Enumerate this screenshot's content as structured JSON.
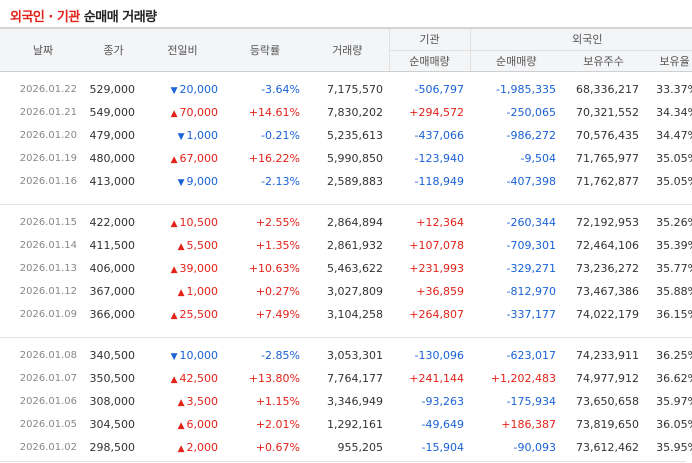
{
  "title": {
    "part1": "외국인",
    "sep": " · ",
    "part2": "기관",
    "part3": " 순매매 거래량"
  },
  "headers": {
    "date": "날짜",
    "close": "종가",
    "change": "전일비",
    "rate": "등락률",
    "volume": "거래량",
    "inst": "기관",
    "foreign": "외국인",
    "inst_net": "순매매량",
    "foreign_net": "순매매량",
    "holdings": "보유주수",
    "ratio": "보유율"
  },
  "colors": {
    "up": "#e2231a",
    "down": "#1a62d6"
  },
  "groups": [
    [
      {
        "date": "2026.01.22",
        "close": "529,000",
        "dir": "down",
        "change": "20,000",
        "rate": "-3.64%",
        "volume": "7,175,570",
        "inst": "-506,797",
        "foreign": "-1,985,335",
        "holdings": "68,336,217",
        "ratio": "33.37%"
      },
      {
        "date": "2026.01.21",
        "close": "549,000",
        "dir": "up",
        "change": "70,000",
        "rate": "+14.61%",
        "volume": "7,830,202",
        "inst": "+294,572",
        "foreign": "-250,065",
        "holdings": "70,321,552",
        "ratio": "34.34%"
      },
      {
        "date": "2026.01.20",
        "close": "479,000",
        "dir": "down",
        "change": "1,000",
        "rate": "-0.21%",
        "volume": "5,235,613",
        "inst": "-437,066",
        "foreign": "-986,272",
        "holdings": "70,576,435",
        "ratio": "34.47%"
      },
      {
        "date": "2026.01.19",
        "close": "480,000",
        "dir": "up",
        "change": "67,000",
        "rate": "+16.22%",
        "volume": "5,990,850",
        "inst": "-123,940",
        "foreign": "-9,504",
        "holdings": "71,765,977",
        "ratio": "35.05%"
      },
      {
        "date": "2026.01.16",
        "close": "413,000",
        "dir": "down",
        "change": "9,000",
        "rate": "-2.13%",
        "volume": "2,589,883",
        "inst": "-118,949",
        "foreign": "-407,398",
        "holdings": "71,762,877",
        "ratio": "35.05%"
      }
    ],
    [
      {
        "date": "2026.01.15",
        "close": "422,000",
        "dir": "up",
        "change": "10,500",
        "rate": "+2.55%",
        "volume": "2,864,894",
        "inst": "+12,364",
        "foreign": "-260,344",
        "holdings": "72,192,953",
        "ratio": "35.26%"
      },
      {
        "date": "2026.01.14",
        "close": "411,500",
        "dir": "up",
        "change": "5,500",
        "rate": "+1.35%",
        "volume": "2,861,932",
        "inst": "+107,078",
        "foreign": "-709,301",
        "holdings": "72,464,106",
        "ratio": "35.39%"
      },
      {
        "date": "2026.01.13",
        "close": "406,000",
        "dir": "up",
        "change": "39,000",
        "rate": "+10.63%",
        "volume": "5,463,622",
        "inst": "+231,993",
        "foreign": "-329,271",
        "holdings": "73,236,272",
        "ratio": "35.77%"
      },
      {
        "date": "2026.01.12",
        "close": "367,000",
        "dir": "up",
        "change": "1,000",
        "rate": "+0.27%",
        "volume": "3,027,809",
        "inst": "+36,859",
        "foreign": "-812,970",
        "holdings": "73,467,386",
        "ratio": "35.88%"
      },
      {
        "date": "2026.01.09",
        "close": "366,000",
        "dir": "up",
        "change": "25,500",
        "rate": "+7.49%",
        "volume": "3,104,258",
        "inst": "+264,807",
        "foreign": "-337,177",
        "holdings": "74,022,179",
        "ratio": "36.15%"
      }
    ],
    [
      {
        "date": "2026.01.08",
        "close": "340,500",
        "dir": "down",
        "change": "10,000",
        "rate": "-2.85%",
        "volume": "3,053,301",
        "inst": "-130,096",
        "foreign": "-623,017",
        "holdings": "74,233,911",
        "ratio": "36.25%"
      },
      {
        "date": "2026.01.07",
        "close": "350,500",
        "dir": "up",
        "change": "42,500",
        "rate": "+13.80%",
        "volume": "7,764,177",
        "inst": "+241,144",
        "foreign": "+1,202,483",
        "holdings": "74,977,912",
        "ratio": "36.62%"
      },
      {
        "date": "2026.01.06",
        "close": "308,000",
        "dir": "up",
        "change": "3,500",
        "rate": "+1.15%",
        "volume": "3,346,949",
        "inst": "-93,263",
        "foreign": "-175,934",
        "holdings": "73,650,658",
        "ratio": "35.97%"
      },
      {
        "date": "2026.01.05",
        "close": "304,500",
        "dir": "up",
        "change": "6,000",
        "rate": "+2.01%",
        "volume": "1,292,161",
        "inst": "-49,649",
        "foreign": "+186,387",
        "holdings": "73,819,650",
        "ratio": "36.05%"
      },
      {
        "date": "2026.01.02",
        "close": "298,500",
        "dir": "up",
        "change": "2,000",
        "rate": "+0.67%",
        "volume": "955,205",
        "inst": "-15,904",
        "foreign": "-90,093",
        "holdings": "73,612,462",
        "ratio": "35.95%"
      }
    ]
  ]
}
